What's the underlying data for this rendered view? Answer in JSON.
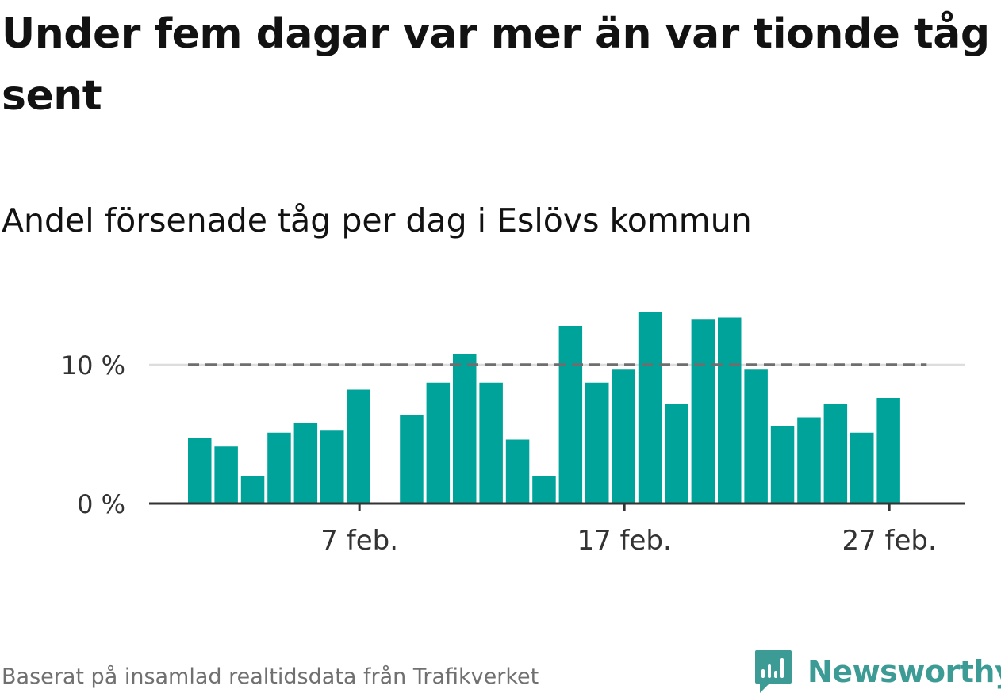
{
  "header": {
    "title": "Under fem dagar var mer än var tionde tåg sent",
    "subtitle": "Andel försenade tåg per dag i Eslövs kommun"
  },
  "footer": {
    "source": "Baserat på insamlad realtidsdata från Trafikverket",
    "brand": "Newsworthy",
    "brand_icon": "newsworthy-logo-icon"
  },
  "colors": {
    "bar": "#00a39a",
    "reference_line": "#6e6e6e",
    "gridline": "#dddddd",
    "axis": "#333333",
    "brand": "#3d9b96"
  },
  "chart_data": {
    "type": "bar",
    "x_start_day": 1,
    "x": [
      "1 feb.",
      "2 feb.",
      "3 feb.",
      "4 feb.",
      "5 feb.",
      "6 feb.",
      "7 feb.",
      "8 feb.",
      "9 feb.",
      "10 feb.",
      "11 feb.",
      "12 feb.",
      "13 feb.",
      "14 feb.",
      "15 feb.",
      "16 feb.",
      "17 feb.",
      "18 feb.",
      "19 feb.",
      "20 feb.",
      "21 feb.",
      "22 feb.",
      "23 feb.",
      "24 feb.",
      "25 feb.",
      "26 feb.",
      "27 feb.",
      "28 feb."
    ],
    "values": [
      4.7,
      4.1,
      2.0,
      5.1,
      5.8,
      5.3,
      8.2,
      null,
      6.4,
      8.7,
      10.8,
      8.7,
      4.6,
      2.0,
      12.8,
      8.7,
      9.7,
      13.8,
      7.2,
      13.3,
      13.4,
      9.7,
      5.6,
      6.2,
      7.2,
      5.1,
      7.6,
      null
    ],
    "reference_line": 10,
    "y_ticks": [
      {
        "value": 0,
        "label": "0 %"
      },
      {
        "value": 10,
        "label": "10 %"
      }
    ],
    "x_ticks": [
      {
        "index": 6,
        "label": "7 feb."
      },
      {
        "index": 16,
        "label": "17 feb."
      },
      {
        "index": 26,
        "label": "27 feb."
      }
    ],
    "ylim": [
      0,
      15
    ],
    "grid": true
  }
}
